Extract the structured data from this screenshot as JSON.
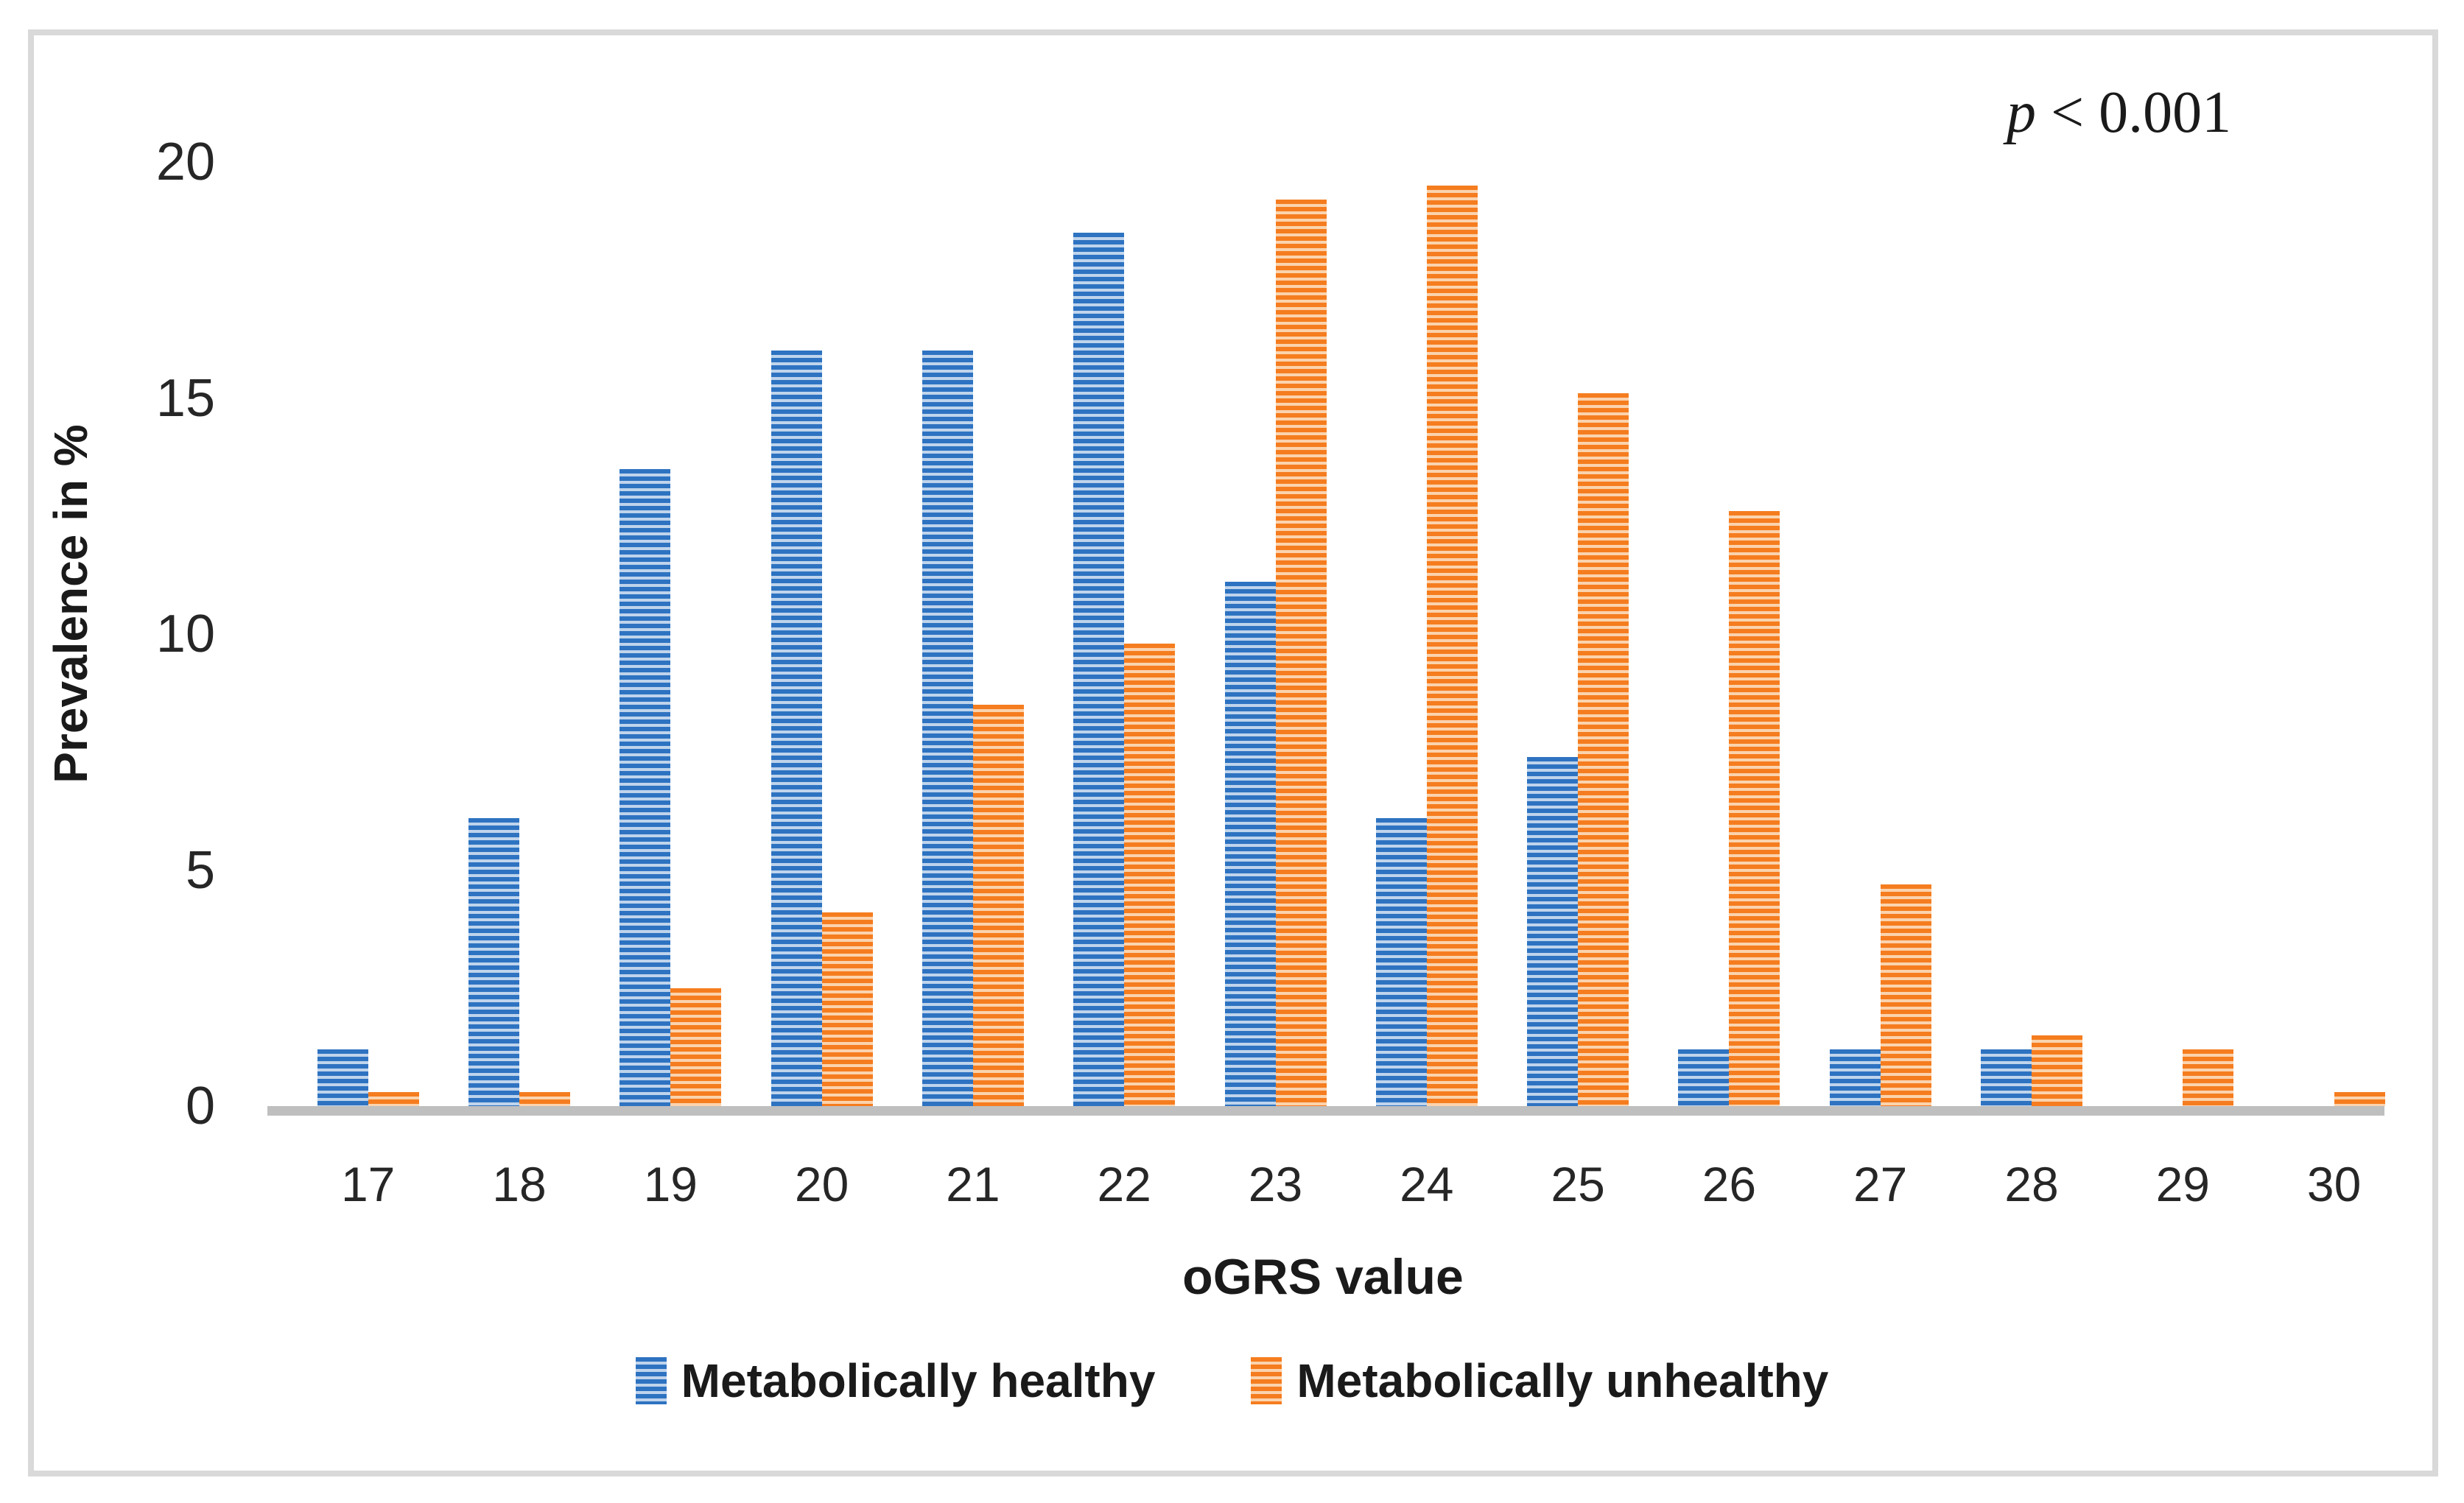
{
  "chart_data": {
    "type": "bar",
    "title": "",
    "xlabel": "oGRS value",
    "ylabel": "Prevalence in %",
    "categories": [
      "17",
      "18",
      "19",
      "20",
      "21",
      "22",
      "23",
      "24",
      "25",
      "26",
      "27",
      "28",
      "29",
      "30"
    ],
    "series": [
      {
        "name": "Metabolically healthy",
        "color_dark": "#2e73c1",
        "color_light": "#bfd4ec",
        "values": [
          1.2,
          6.1,
          13.5,
          16.0,
          16.0,
          18.5,
          11.1,
          6.1,
          7.4,
          1.2,
          1.2,
          1.2,
          0,
          0
        ]
      },
      {
        "name": "Metabolically unhealthy",
        "color_dark": "#f57d1f",
        "color_light": "#fbd3ae",
        "values": [
          0.3,
          0.3,
          2.5,
          4.1,
          8.5,
          9.8,
          19.2,
          19.5,
          15.1,
          12.6,
          4.7,
          1.5,
          1.2,
          0.3
        ]
      }
    ],
    "yticks": [
      0,
      5,
      10,
      15,
      20
    ],
    "ylim": [
      0,
      20
    ],
    "grid": false,
    "pattern": "horizontal-stripes",
    "legend_position": "bottom",
    "annotation": {
      "symbol": "p",
      "rest": " < 0.001"
    },
    "axis_line_color": "#bfbfbf",
    "frame_color": "#d9d9d9"
  }
}
